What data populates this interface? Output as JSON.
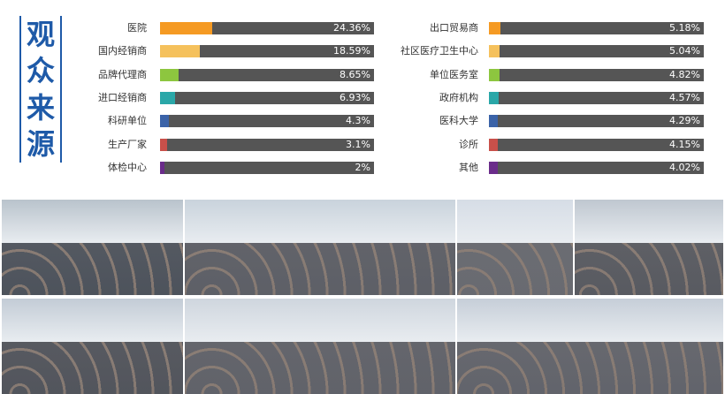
{
  "title_chars": [
    "观",
    "众",
    "来",
    "源"
  ],
  "colors": {
    "title": "#1e5aa8",
    "track": "#555555",
    "value_text": "#ffffff",
    "fills": [
      "#f59a23",
      "#f5c15c",
      "#8dc63f",
      "#2aa7a8",
      "#3b63a8",
      "#c8504a",
      "#6a2c8a"
    ]
  },
  "chart_data": [
    {
      "type": "bar",
      "orientation": "horizontal",
      "categories": [
        "医院",
        "国内经销商",
        "品牌代理商",
        "进口经销商",
        "科研单位",
        "生产厂家",
        "体检中心"
      ],
      "values": [
        24.36,
        18.59,
        8.65,
        6.93,
        4.3,
        3.1,
        2
      ],
      "value_labels": [
        "24.36%",
        "18.59%",
        "8.65%",
        "6.93%",
        "4.3%",
        "3.1%",
        "2%"
      ],
      "xlim": [
        0,
        100
      ],
      "grid": false,
      "legend": "none"
    },
    {
      "type": "bar",
      "orientation": "horizontal",
      "categories": [
        "出口贸易商",
        "社区医疗卫生中心",
        "单位医务室",
        "政府机构",
        "医科大学",
        "诊所",
        "其他"
      ],
      "values": [
        5.18,
        5.04,
        4.82,
        4.57,
        4.29,
        4.15,
        4.02
      ],
      "value_labels": [
        "5.18%",
        "5.04%",
        "4.82%",
        "4.57%",
        "4.29%",
        "4.15%",
        "4.02%"
      ],
      "xlim": [
        0,
        100
      ],
      "grid": false,
      "legend": "none"
    }
  ],
  "photos": [
    {
      "name": "photo-hall-entrance",
      "bg": "#b9c3cc",
      "crowd": "#3a3f48"
    },
    {
      "name": "photo-crowd-aisle",
      "bg": "#c9d3dc",
      "crowd": "#4a4b52"
    },
    {
      "name": "photo-booth-visitors",
      "bg": "#d6dde6",
      "crowd": "#55565c"
    },
    {
      "name": "photo-dense-crowd",
      "bg": "#bfc7d0",
      "crowd": "#46474d"
    },
    {
      "name": "photo-hall-overview",
      "bg": "#c3ccd6",
      "crowd": "#3e4047"
    },
    {
      "name": "photo-masked-visitors",
      "bg": "#cfd6de",
      "crowd": "#4d4e55"
    },
    {
      "name": "photo-exhibit-corridor",
      "bg": "#c6ced8",
      "crowd": "#505158"
    }
  ]
}
